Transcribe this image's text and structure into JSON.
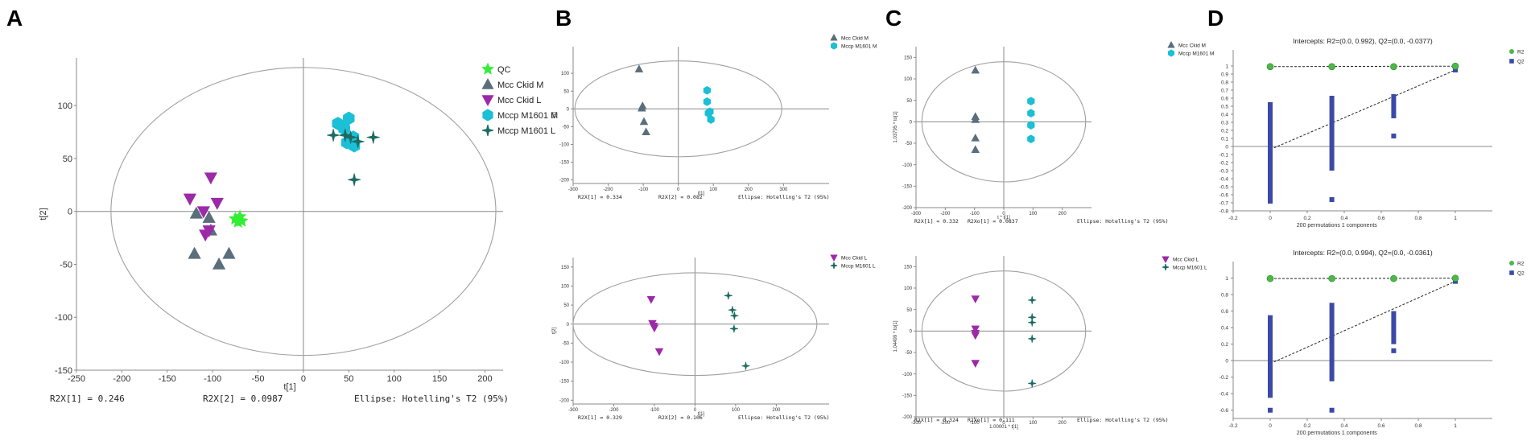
{
  "figure": {
    "panel_letters": [
      "A",
      "B",
      "C",
      "D"
    ]
  },
  "colors": {
    "QC": "#33ee33",
    "Mcc Ckid M": "#5a6e7c",
    "Mcc Ckid L": "#9c2aa8",
    "Mccp M1601 M": "#1bbfd6",
    "Mccp M1601 L": "#1b6b62",
    "R2": "#4cb848",
    "Q2": "#3b4aa8",
    "ellipse": "#a0a0a0",
    "axis": "#888888"
  },
  "chart_data": [
    {
      "id": "A",
      "type": "scatter",
      "title": "",
      "xlabel": "t[1]",
      "ylabel": "t[2]",
      "xlim": [
        -250,
        220
      ],
      "ylim": [
        -150,
        145
      ],
      "xticks": [
        -250,
        -200,
        -150,
        -100,
        -50,
        0,
        50,
        100,
        150,
        200
      ],
      "yticks": [
        -150,
        -100,
        -50,
        0,
        50,
        100
      ],
      "ellipse": {
        "cx": 0,
        "cy": 0,
        "rx": 212,
        "ry": 136
      },
      "legend": [
        "QC",
        "Mcc Ckid M",
        "Mcc Ckid L",
        "Mccp M1601 M",
        "Mccp M1601 L"
      ],
      "legend_position": "top-right",
      "series": [
        {
          "name": "QC",
          "marker": "star5",
          "points": [
            [
              -75,
              -7
            ],
            [
              -72,
              -10
            ],
            [
              -68,
              -9
            ],
            [
              -70,
              -5
            ]
          ]
        },
        {
          "name": "Mcc Ckid M",
          "marker": "triangle",
          "points": [
            [
              -118,
              -2
            ],
            [
              -120,
              -40
            ],
            [
              -104,
              -6
            ],
            [
              -102,
              -18
            ],
            [
              -93,
              -50
            ],
            [
              -82,
              -40
            ]
          ]
        },
        {
          "name": "Mcc Ckid L",
          "marker": "triangle-down",
          "points": [
            [
              -125,
              12
            ],
            [
              -102,
              32
            ],
            [
              -95,
              8
            ],
            [
              -110,
              0
            ],
            [
              -108,
              -22
            ],
            [
              -104,
              -18
            ]
          ]
        },
        {
          "name": "Mccp M1601 M",
          "marker": "hexagon",
          "points": [
            [
              38,
              83
            ],
            [
              50,
              88
            ],
            [
              45,
              78
            ],
            [
              55,
              70
            ],
            [
              48,
              65
            ],
            [
              56,
              62
            ]
          ]
        },
        {
          "name": "Mccp M1601 L",
          "marker": "star4",
          "points": [
            [
              33,
              72
            ],
            [
              46,
              72
            ],
            [
              52,
              70
            ],
            [
              60,
              66
            ],
            [
              77,
              70
            ],
            [
              56,
              30
            ]
          ]
        }
      ],
      "annotations": [
        "R2X[1] = 0.246",
        "R2X[2] = 0.0987",
        "Ellipse: Hotelling's T2 (95%)"
      ]
    },
    {
      "id": "B-top",
      "type": "scatter",
      "xlabel": "t[1]",
      "ylabel": "t[2]",
      "xlim": [
        -300,
        430
      ],
      "ylim": [
        -210,
        175
      ],
      "xticks": [
        -300,
        -200,
        -100,
        0,
        100,
        200,
        300
      ],
      "yticks": [
        -200,
        -150,
        -100,
        -50,
        0,
        50,
        100
      ],
      "ellipse": {
        "cx": 0,
        "cy": 0,
        "rx": 295,
        "ry": 135
      },
      "legend": [
        "Mcc Ckid M",
        "Mccp M1601 M"
      ],
      "legend_position": "top-right",
      "series": [
        {
          "name": "Mcc Ckid M",
          "marker": "triangle",
          "points": [
            [
              -112,
              112
            ],
            [
              -102,
              8
            ],
            [
              -104,
              2
            ],
            [
              -98,
              -36
            ],
            [
              -92,
              -65
            ]
          ]
        },
        {
          "name": "Mccp M1601 M",
          "marker": "hexagon",
          "points": [
            [
              82,
              52
            ],
            [
              82,
              20
            ],
            [
              90,
              -8
            ],
            [
              86,
              -12
            ],
            [
              93,
              -30
            ]
          ]
        }
      ],
      "annotations": [
        "R2X[1] = 0.334",
        "R2X[2] = 0.082",
        "Ellipse: Hotelling's T2 (95%)"
      ]
    },
    {
      "id": "B-bottom",
      "type": "scatter",
      "xlabel": "t[1]",
      "ylabel": "t[2]",
      "xlim": [
        -300,
        330
      ],
      "ylim": [
        -210,
        175
      ],
      "xticks": [
        -300,
        -200,
        -100,
        0,
        100,
        200
      ],
      "yticks": [
        -200,
        -150,
        -100,
        -50,
        0,
        50,
        100,
        150
      ],
      "ellipse": {
        "cx": 0,
        "cy": 0,
        "rx": 300,
        "ry": 135
      },
      "legend": [
        "Mcc Ckid L",
        "Mccp M1601 L"
      ],
      "legend_position": "top-right",
      "series": [
        {
          "name": "Mcc Ckid L",
          "marker": "triangle-down",
          "points": [
            [
              -108,
              65
            ],
            [
              -105,
              2
            ],
            [
              -102,
              -5
            ],
            [
              -100,
              -10
            ],
            [
              -88,
              -72
            ]
          ]
        },
        {
          "name": "Mccp M1601 L",
          "marker": "star4",
          "points": [
            [
              82,
              75
            ],
            [
              92,
              37
            ],
            [
              97,
              22
            ],
            [
              96,
              -12
            ],
            [
              125,
              -110
            ]
          ]
        }
      ],
      "annotations": [
        "R2X[1] = 0.329",
        "R2X[2] = 0.106",
        "Ellipse: Hotelling's T2 (95%)"
      ]
    },
    {
      "id": "C-top",
      "type": "scatter",
      "xlabel": "t * t[1]",
      "ylabel": "1.03795 * to[1]",
      "xlim": [
        -300,
        300
      ],
      "ylim": [
        -200,
        175
      ],
      "xticks": [
        -300,
        -200,
        -100,
        0,
        100,
        200
      ],
      "yticks": [
        -200,
        -150,
        -100,
        -50,
        0,
        50,
        100,
        150
      ],
      "ellipse": {
        "cx": 0,
        "cy": 0,
        "rx": 280,
        "ry": 140
      },
      "legend": [
        "Mcc Ckid M",
        "Mccp M1601 M"
      ],
      "legend_position": "top-right",
      "series": [
        {
          "name": "Mcc Ckid M",
          "marker": "triangle",
          "points": [
            [
              -97,
              120
            ],
            [
              -97,
              12
            ],
            [
              -97,
              5
            ],
            [
              -97,
              -38
            ],
            [
              -97,
              -65
            ]
          ]
        },
        {
          "name": "Mccp M1601 M",
          "marker": "hexagon",
          "points": [
            [
              93,
              48
            ],
            [
              93,
              20
            ],
            [
              93,
              -8
            ],
            [
              93,
              -40
            ]
          ]
        }
      ],
      "annotations": [
        "R2X[1] = 0.332",
        "R2Xo[1] = 0.0837",
        "Ellipse: Hotelling's T2 (95%)"
      ]
    },
    {
      "id": "C-bottom",
      "type": "scatter",
      "xlabel": "1.00001 * t[1]",
      "ylabel": "1.04499 * to[1]",
      "xlim": [
        -300,
        300
      ],
      "ylim": [
        -200,
        175
      ],
      "xticks": [
        -300,
        -200,
        -100,
        0,
        100,
        200
      ],
      "yticks": [
        -200,
        -150,
        -100,
        -50,
        0,
        50,
        100,
        150
      ],
      "ellipse": {
        "cx": 0,
        "cy": 0,
        "rx": 280,
        "ry": 140
      },
      "legend": [
        "Mcc Ckid L",
        "Mccp M1601 L"
      ],
      "legend_position": "top-right",
      "series": [
        {
          "name": "Mcc Ckid L",
          "marker": "triangle-down",
          "points": [
            [
              -97,
              75
            ],
            [
              -97,
              5
            ],
            [
              -97,
              -5
            ],
            [
              -97,
              -10
            ],
            [
              -97,
              -75
            ]
          ]
        },
        {
          "name": "Mccp M1601 L",
          "marker": "star4",
          "points": [
            [
              97,
              72
            ],
            [
              97,
              32
            ],
            [
              97,
              20
            ],
            [
              97,
              -18
            ],
            [
              97,
              -122
            ]
          ]
        }
      ],
      "annotations": [
        "R2X[1] = 0.324",
        "R2Xo[1] = 0.111",
        "Ellipse: Hotelling's T2 (95%)"
      ]
    },
    {
      "id": "D-top",
      "type": "scatter",
      "title": "Intercepts: R2=(0.0, 0.992), Q2=(0.0, -0.0377)",
      "xlabel": "200 permutations 1 components",
      "ylabel": "",
      "xlim": [
        -0.2,
        1.2
      ],
      "ylim": [
        -0.8,
        1.2
      ],
      "xticks": [
        -0.2,
        0,
        0.2,
        0.4,
        0.6,
        0.8,
        1
      ],
      "yticks": [
        -0.8,
        -0.7,
        -0.6,
        -0.5,
        -0.4,
        -0.3,
        -0.2,
        -0.1,
        0,
        0.1,
        0.2,
        0.3,
        0.4,
        0.5,
        0.6,
        0.7,
        0.8,
        0.9,
        1
      ],
      "legend": [
        "R2",
        "Q2"
      ],
      "legend_position": "top-right",
      "r2_points": [
        [
          0,
          0.992
        ],
        [
          0.333,
          0.992
        ],
        [
          0.667,
          0.992
        ],
        [
          1,
          0.998
        ]
      ],
      "r2_line": [
        [
          0,
          0.992
        ],
        [
          1,
          0.998
        ]
      ],
      "q2_line": [
        [
          0,
          -0.0377
        ],
        [
          1,
          0.95
        ]
      ],
      "q2_columns": [
        {
          "x": 0,
          "from": -0.68,
          "to": 0.55
        },
        {
          "x": 0.333,
          "from": -0.3,
          "to": 0.63
        },
        {
          "x": 0.667,
          "from": 0.35,
          "to": 0.65
        }
      ],
      "q2_points": [
        [
          0,
          -0.68
        ],
        [
          0.333,
          -0.66
        ],
        [
          0.667,
          0.13
        ],
        [
          1,
          0.95
        ]
      ]
    },
    {
      "id": "D-bottom",
      "type": "scatter",
      "title": "Intercepts: R2=(0.0, 0.994), Q2=(0.0, -0.0361)",
      "xlabel": "200 permutations 1 components",
      "ylabel": "",
      "xlim": [
        -0.2,
        1.2
      ],
      "ylim": [
        -0.7,
        1.2
      ],
      "xticks": [
        -0.2,
        0,
        0.2,
        0.4,
        0.6,
        0.8,
        1
      ],
      "yticks": [
        -0.6,
        -0.4,
        -0.2,
        0,
        0.2,
        0.4,
        0.6,
        0.8,
        1
      ],
      "legend": [
        "R2",
        "Q2"
      ],
      "legend_position": "top-right",
      "r2_points": [
        [
          0,
          0.994
        ],
        [
          0.333,
          0.994
        ],
        [
          0.667,
          0.994
        ],
        [
          1,
          0.998
        ]
      ],
      "r2_line": [
        [
          0,
          0.994
        ],
        [
          1,
          0.998
        ]
      ],
      "q2_line": [
        [
          0,
          -0.0361
        ],
        [
          1,
          0.96
        ]
      ],
      "q2_columns": [
        {
          "x": 0,
          "from": -0.45,
          "to": 0.55
        },
        {
          "x": 0.333,
          "from": -0.25,
          "to": 0.7
        },
        {
          "x": 0.667,
          "from": 0.2,
          "to": 0.6
        }
      ],
      "q2_points": [
        [
          0,
          -0.6
        ],
        [
          0.333,
          -0.6
        ],
        [
          0.667,
          0.12
        ],
        [
          1,
          0.96
        ]
      ]
    }
  ]
}
